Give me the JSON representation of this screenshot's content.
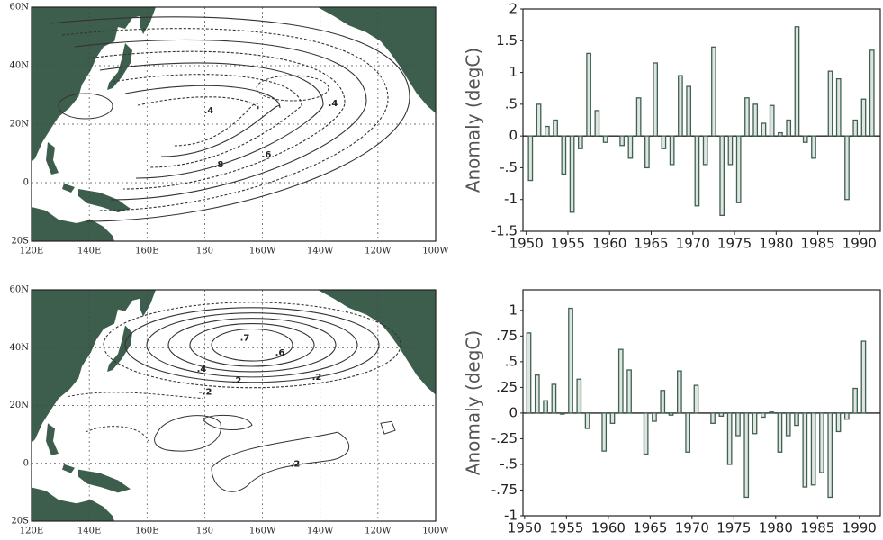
{
  "maps": [
    {
      "lat_labels": [
        "60N",
        "40N",
        "20N",
        "0",
        "20S"
      ],
      "lon_labels": [
        "120E",
        "140E",
        "160E",
        "180",
        "160W",
        "140W",
        "120W",
        "100W"
      ],
      "contour_labels": [
        ".4",
        ".4",
        ".6",
        ".8"
      ]
    },
    {
      "lat_labels": [
        "60N",
        "40N",
        "20N",
        "0",
        "20S"
      ],
      "lon_labels": [
        "120E",
        "140E",
        "160E",
        "180",
        "160W",
        "140W",
        "120W",
        "100W"
      ],
      "contour_labels": [
        ".7",
        ".6",
        ".4",
        ".2",
        "-.2",
        ".2",
        ".2"
      ]
    }
  ],
  "chart_data": [
    {
      "type": "bar",
      "y_label": "Anomaly (degC)",
      "color": "#3f6150",
      "x": [
        1950,
        1951,
        1952,
        1953,
        1954,
        1955,
        1956,
        1957,
        1958,
        1959,
        1960,
        1961,
        1962,
        1963,
        1964,
        1965,
        1966,
        1967,
        1968,
        1969,
        1970,
        1971,
        1972,
        1973,
        1974,
        1975,
        1976,
        1977,
        1978,
        1979,
        1980,
        1981,
        1982,
        1983,
        1984,
        1985,
        1986,
        1987,
        1988,
        1989,
        1990,
        1991
      ],
      "values": [
        -0.7,
        0.5,
        0.15,
        0.25,
        -0.6,
        -1.2,
        -0.2,
        1.3,
        0.4,
        -0.1,
        0,
        -0.15,
        -0.35,
        0.6,
        -0.5,
        1.15,
        -0.2,
        -0.45,
        0.95,
        0.78,
        -1.1,
        -0.45,
        1.4,
        -1.25,
        -0.45,
        -1.05,
        0.6,
        0.5,
        0.2,
        0.48,
        0.05,
        0.25,
        1.72,
        -0.1,
        -0.35,
        0,
        1.02,
        0.9,
        -1.0,
        0.25,
        0.58,
        1.35
      ],
      "xlim": [
        1949.6,
        1992.5
      ],
      "xticks": [
        1950,
        1955,
        1960,
        1965,
        1970,
        1975,
        1980,
        1985,
        1990
      ],
      "ylim": [
        -1.5,
        2
      ],
      "yticks": [
        2,
        1.5,
        1,
        {
          "value": 0.5,
          "label": ".5"
        },
        0,
        {
          "value": -0.5,
          "label": "-.5"
        },
        -1,
        -1.5
      ]
    },
    {
      "type": "bar",
      "y_label": "Anomaly (degC)",
      "color": "#3f6150",
      "x": [
        1950,
        1951,
        1952,
        1953,
        1954,
        1955,
        1956,
        1957,
        1958,
        1959,
        1960,
        1961,
        1962,
        1963,
        1964,
        1965,
        1966,
        1967,
        1968,
        1969,
        1970,
        1971,
        1972,
        1973,
        1974,
        1975,
        1976,
        1977,
        1978,
        1979,
        1980,
        1981,
        1982,
        1983,
        1984,
        1985,
        1986,
        1987,
        1988,
        1989,
        1990
      ],
      "values": [
        0.78,
        0.37,
        0.12,
        0.28,
        -0.01,
        1.02,
        0.33,
        -0.15,
        0,
        -0.37,
        -0.1,
        0.62,
        0.42,
        0,
        -0.4,
        -0.08,
        0.22,
        -0.02,
        0.41,
        -0.38,
        0.27,
        0,
        -0.1,
        -0.03,
        -0.5,
        -0.22,
        -0.82,
        -0.2,
        -0.04,
        0.01,
        -0.38,
        -0.22,
        -0.12,
        -0.72,
        -0.7,
        -0.58,
        -0.82,
        -0.18,
        -0.06,
        0.24,
        0.7
      ],
      "xlim": [
        1949.8,
        1992.5
      ],
      "xticks": [
        1950,
        1955,
        1960,
        1965,
        1970,
        1975,
        1980,
        1985,
        1990
      ],
      "ylim": [
        -1,
        1.2
      ],
      "yticks": [
        1,
        {
          "value": 0.75,
          "label": ".75"
        },
        {
          "value": 0.5,
          "label": ".5"
        },
        {
          "value": 0.25,
          "label": ".25"
        },
        0,
        {
          "value": -0.25,
          "label": "-.25"
        },
        {
          "value": -0.5,
          "label": "-.5"
        },
        {
          "value": -0.75,
          "label": "-.75"
        },
        -1
      ]
    }
  ]
}
